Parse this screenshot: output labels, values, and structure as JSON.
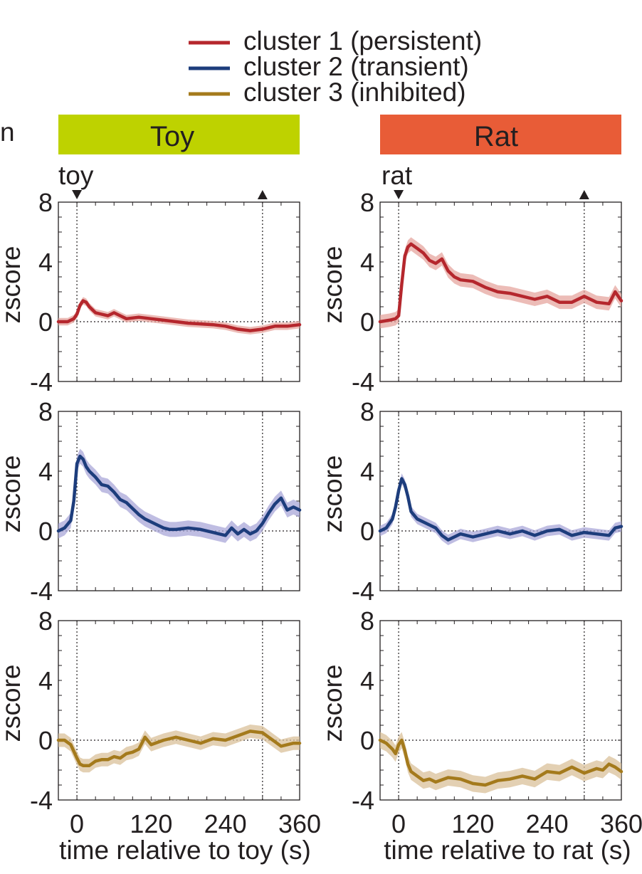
{
  "legend": {
    "entries": [
      {
        "label": "cluster 1 (persistent)",
        "color": "#b5272d"
      },
      {
        "label": "cluster 2 (transient)",
        "color": "#1d3d7c"
      },
      {
        "label": "cluster 3 (inhibited)",
        "color": "#a47a1c"
      }
    ]
  },
  "partial_label": "n",
  "panels": [
    {
      "id": "toy",
      "header": "Toy",
      "header_color": "#bed200",
      "event_label": "toy",
      "xlabel": "time relative to toy (s)"
    },
    {
      "id": "rat",
      "header": "Rat",
      "header_color": "#e85c37",
      "event_label": "rat",
      "xlabel": "time relative to rat (s)"
    }
  ],
  "chart_data": {
    "type": "line",
    "x_range": [
      -30,
      360
    ],
    "ylim": [
      -4,
      8
    ],
    "yticks": [
      8,
      4,
      0,
      -4
    ],
    "xticks": [
      0,
      120,
      240,
      360
    ],
    "ylabel": "zscore",
    "event_markers": [
      0,
      300
    ],
    "clusters": [
      {
        "name": "cluster 1 (persistent)",
        "color": "#b5272d",
        "shade": "#e5a59f",
        "toy": {
          "x": [
            -30,
            -15,
            -5,
            0,
            5,
            10,
            15,
            20,
            30,
            40,
            50,
            60,
            70,
            80,
            100,
            120,
            140,
            160,
            180,
            200,
            220,
            240,
            260,
            280,
            300,
            320,
            340,
            360
          ],
          "y": [
            0,
            0,
            0.2,
            0.5,
            1.1,
            1.4,
            1.3,
            1.0,
            0.6,
            0.5,
            0.4,
            0.6,
            0.4,
            0.2,
            0.3,
            0.2,
            0.1,
            0,
            -0.1,
            -0.15,
            -0.2,
            -0.3,
            -0.5,
            -0.6,
            -0.5,
            -0.3,
            -0.3,
            -0.2
          ],
          "err": 0.25
        },
        "rat": {
          "x": [
            -30,
            -15,
            -5,
            0,
            5,
            10,
            15,
            20,
            30,
            40,
            50,
            60,
            70,
            80,
            90,
            100,
            120,
            140,
            160,
            180,
            200,
            220,
            240,
            260,
            280,
            300,
            320,
            340,
            350,
            360
          ],
          "y": [
            0,
            0.1,
            0.2,
            0.4,
            2.5,
            4.4,
            5.0,
            5.2,
            4.9,
            4.6,
            4.1,
            3.9,
            4.2,
            3.4,
            3.0,
            2.8,
            2.7,
            2.3,
            2.0,
            1.9,
            1.7,
            1.5,
            1.7,
            1.3,
            1.3,
            1.7,
            1.3,
            1.2,
            2.0,
            1.4
          ],
          "err": 0.45
        }
      },
      {
        "name": "cluster 2 (transient)",
        "color": "#1d3d7c",
        "shade": "#a9a7d8",
        "toy": {
          "x": [
            -30,
            -20,
            -10,
            -5,
            0,
            5,
            10,
            15,
            20,
            30,
            40,
            50,
            60,
            70,
            80,
            90,
            100,
            110,
            120,
            130,
            140,
            150,
            160,
            180,
            200,
            220,
            240,
            250,
            260,
            270,
            280,
            290,
            300,
            310,
            320,
            330,
            340,
            350,
            360
          ],
          "y": [
            0,
            0.2,
            0.7,
            2.0,
            4.5,
            5.0,
            4.8,
            4.3,
            4.0,
            3.6,
            3.1,
            3.0,
            2.6,
            2.1,
            1.9,
            1.5,
            1.1,
            0.8,
            0.6,
            0.4,
            0.2,
            0.1,
            0.1,
            0.2,
            0.1,
            -0.1,
            -0.3,
            0.2,
            -0.2,
            0.1,
            -0.2,
            0,
            0.5,
            1.2,
            1.8,
            2.2,
            1.4,
            1.6,
            1.4
          ],
          "err": 0.5
        },
        "rat": {
          "x": [
            -30,
            -20,
            -10,
            -5,
            0,
            5,
            10,
            15,
            20,
            30,
            40,
            50,
            60,
            70,
            80,
            100,
            120,
            140,
            160,
            180,
            200,
            220,
            240,
            260,
            280,
            300,
            320,
            340,
            350,
            360
          ],
          "y": [
            0,
            0.2,
            0.8,
            1.6,
            2.7,
            3.5,
            3.1,
            2.3,
            1.3,
            0.8,
            0.6,
            0.4,
            0.2,
            -0.3,
            -0.6,
            -0.2,
            -0.4,
            -0.2,
            0,
            -0.2,
            0,
            -0.3,
            0,
            0.1,
            -0.3,
            -0.1,
            -0.2,
            -0.3,
            0.2,
            0.3
          ],
          "err": 0.35
        }
      },
      {
        "name": "cluster 3 (inhibited)",
        "color": "#a47a1c",
        "shade": "#d9c09a",
        "toy": {
          "x": [
            -30,
            -20,
            -10,
            0,
            5,
            10,
            20,
            30,
            40,
            50,
            60,
            70,
            80,
            90,
            100,
            110,
            120,
            140,
            160,
            180,
            200,
            220,
            240,
            260,
            280,
            300,
            310,
            320,
            330,
            340,
            350,
            360
          ],
          "y": [
            0,
            0,
            -0.3,
            -1.2,
            -1.6,
            -1.7,
            -1.7,
            -1.4,
            -1.3,
            -1.3,
            -1.1,
            -1.2,
            -0.9,
            -0.8,
            -0.6,
            0.2,
            -0.3,
            0,
            0.2,
            0,
            -0.2,
            0.1,
            0,
            0.3,
            0.6,
            0.5,
            0.2,
            -0.1,
            -0.4,
            -0.3,
            -0.2,
            -0.2
          ],
          "err": 0.45
        },
        "rat": {
          "x": [
            -30,
            -20,
            -10,
            -5,
            0,
            5,
            10,
            15,
            20,
            30,
            40,
            50,
            60,
            80,
            100,
            120,
            140,
            160,
            180,
            200,
            220,
            240,
            260,
            280,
            300,
            320,
            330,
            340,
            350,
            360
          ],
          "y": [
            0,
            -0.2,
            -0.6,
            -0.9,
            -0.3,
            0,
            -0.7,
            -1.6,
            -2.1,
            -2.4,
            -2.7,
            -2.6,
            -2.8,
            -2.5,
            -2.6,
            -2.9,
            -3.0,
            -2.7,
            -2.6,
            -2.4,
            -2.6,
            -2.1,
            -2.2,
            -1.8,
            -2.2,
            -1.9,
            -2.0,
            -1.6,
            -1.8,
            -2.1
          ],
          "err": 0.55
        }
      }
    ]
  }
}
